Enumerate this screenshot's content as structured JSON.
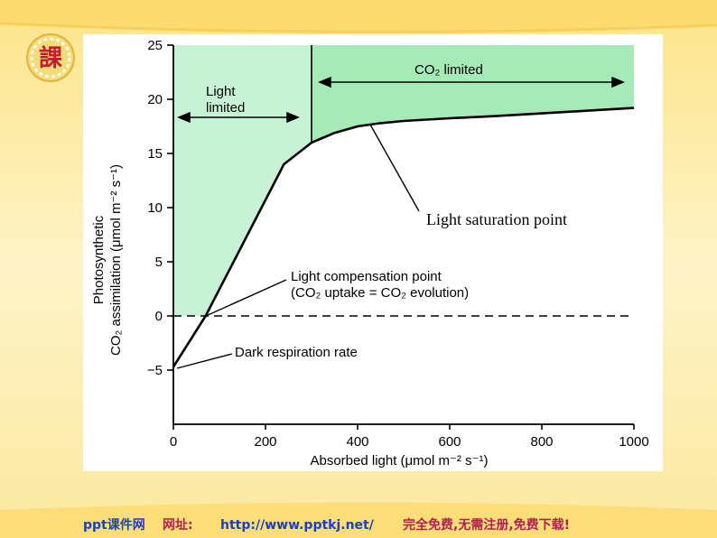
{
  "slide": {
    "logo_char": "課",
    "footer": {
      "brand": "ppt课件网",
      "site_label": "网址:",
      "url": "http://www.pptkj.net/",
      "slogan": "完全免费,无需注册,免费下载!"
    }
  },
  "chart_data": {
    "type": "line",
    "title": "",
    "xlabel": "Absorbed light (μmol m⁻² s⁻¹)",
    "ylabel_line1": "Photosynthetic",
    "ylabel_line2": "CO₂ assimilation (μmol m⁻² s⁻¹)",
    "xlim": [
      0,
      1000
    ],
    "ylim": [
      -10,
      25
    ],
    "x_ticks": [
      "0",
      "200",
      "400",
      "600",
      "800",
      "1000"
    ],
    "y_ticks": [
      "−5",
      "0",
      "5",
      "10",
      "15",
      "20",
      "25"
    ],
    "x_tick_values": [
      0,
      200,
      400,
      600,
      800,
      1000
    ],
    "y_tick_values": [
      -5,
      0,
      5,
      10,
      15,
      20,
      25
    ],
    "series": [
      {
        "x": [
          0,
          70,
          240,
          300,
          350,
          400,
          450,
          500,
          600,
          700,
          800,
          900,
          1000
        ],
        "y": [
          -4.7,
          0,
          14,
          16,
          16.9,
          17.5,
          17.8,
          18.0,
          18.25,
          18.45,
          18.7,
          18.95,
          19.2
        ]
      }
    ],
    "regions": {
      "light_limited_x": [
        0,
        300
      ],
      "co2_limited_x": [
        300,
        1000
      ],
      "light_limited_color": "#c8f2d6",
      "co2_limited_color": "#a6eab8"
    },
    "zero_line": "dashed",
    "labels": {
      "light_limited_line1": "Light",
      "light_limited_line2": "limited",
      "co2_limited": "CO₂ limited",
      "saturation": "Light saturation point",
      "compensation_line1": "Light compensation point",
      "compensation_line2": "(CO₂ uptake = CO₂ evolution)",
      "dark_respiration": "Dark respiration rate"
    }
  }
}
